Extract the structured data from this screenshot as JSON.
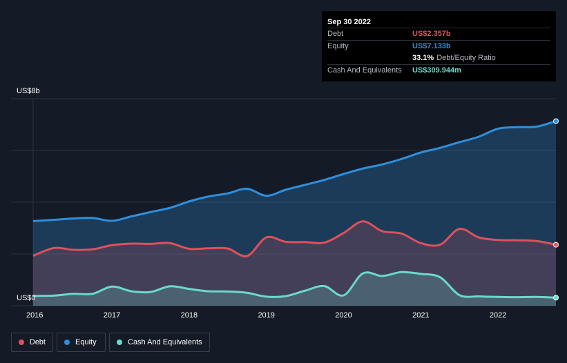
{
  "tooltip": {
    "date": "Sep 30 2022",
    "debt_label": "Debt",
    "debt_value": "US$2.357b",
    "equity_label": "Equity",
    "equity_value": "US$7.133b",
    "ratio_value": "33.1%",
    "ratio_label": "Debt/Equity Ratio",
    "cash_label": "Cash And Equivalents",
    "cash_value": "US$309.944m"
  },
  "legend": {
    "debt": "Debt",
    "equity": "Equity",
    "cash": "Cash And Equivalents"
  },
  "colors": {
    "debt": "#e0505a",
    "equity": "#2e8fde",
    "cash": "#6ad9cc",
    "background": "#151b26"
  },
  "chart_data": {
    "type": "area",
    "y_top_label": "US$8b",
    "y_bottom_label": "US$0",
    "ylim": [
      0,
      8
    ],
    "xlim": [
      2015.98,
      2022.75
    ],
    "x_ticks": [
      "2016",
      "2017",
      "2018",
      "2019",
      "2020",
      "2021",
      "2022"
    ],
    "grid": true,
    "series": [
      {
        "name": "Equity",
        "points": [
          [
            2015.98,
            3.27
          ],
          [
            2016.25,
            3.32
          ],
          [
            2016.5,
            3.37
          ],
          [
            2016.75,
            3.39
          ],
          [
            2017.0,
            3.28
          ],
          [
            2017.25,
            3.45
          ],
          [
            2017.5,
            3.62
          ],
          [
            2017.75,
            3.78
          ],
          [
            2018.0,
            4.03
          ],
          [
            2018.25,
            4.22
          ],
          [
            2018.5,
            4.34
          ],
          [
            2018.75,
            4.52
          ],
          [
            2019.0,
            4.25
          ],
          [
            2019.25,
            4.48
          ],
          [
            2019.5,
            4.67
          ],
          [
            2019.75,
            4.86
          ],
          [
            2020.0,
            5.09
          ],
          [
            2020.25,
            5.3
          ],
          [
            2020.5,
            5.46
          ],
          [
            2020.75,
            5.67
          ],
          [
            2021.0,
            5.92
          ],
          [
            2021.25,
            6.1
          ],
          [
            2021.5,
            6.32
          ],
          [
            2021.75,
            6.53
          ],
          [
            2022.0,
            6.84
          ],
          [
            2022.25,
            6.9
          ],
          [
            2022.5,
            6.92
          ],
          [
            2022.75,
            7.133
          ]
        ]
      },
      {
        "name": "Debt",
        "points": [
          [
            2015.98,
            1.93
          ],
          [
            2016.25,
            2.23
          ],
          [
            2016.5,
            2.16
          ],
          [
            2016.75,
            2.18
          ],
          [
            2017.0,
            2.34
          ],
          [
            2017.25,
            2.4
          ],
          [
            2017.5,
            2.39
          ],
          [
            2017.75,
            2.42
          ],
          [
            2018.0,
            2.2
          ],
          [
            2018.25,
            2.22
          ],
          [
            2018.5,
            2.21
          ],
          [
            2018.75,
            1.92
          ],
          [
            2019.0,
            2.64
          ],
          [
            2019.25,
            2.47
          ],
          [
            2019.5,
            2.46
          ],
          [
            2019.75,
            2.44
          ],
          [
            2020.0,
            2.81
          ],
          [
            2020.25,
            3.26
          ],
          [
            2020.5,
            2.88
          ],
          [
            2020.75,
            2.79
          ],
          [
            2021.0,
            2.42
          ],
          [
            2021.25,
            2.36
          ],
          [
            2021.5,
            2.97
          ],
          [
            2021.75,
            2.64
          ],
          [
            2022.0,
            2.54
          ],
          [
            2022.25,
            2.53
          ],
          [
            2022.5,
            2.5
          ],
          [
            2022.75,
            2.357
          ]
        ]
      },
      {
        "name": "Cash And Equivalents",
        "points": [
          [
            2015.98,
            0.38
          ],
          [
            2016.25,
            0.39
          ],
          [
            2016.5,
            0.46
          ],
          [
            2016.75,
            0.46
          ],
          [
            2017.0,
            0.74
          ],
          [
            2017.25,
            0.56
          ],
          [
            2017.5,
            0.53
          ],
          [
            2017.75,
            0.75
          ],
          [
            2018.0,
            0.65
          ],
          [
            2018.25,
            0.56
          ],
          [
            2018.5,
            0.55
          ],
          [
            2018.75,
            0.5
          ],
          [
            2019.0,
            0.35
          ],
          [
            2019.25,
            0.37
          ],
          [
            2019.5,
            0.58
          ],
          [
            2019.75,
            0.76
          ],
          [
            2020.0,
            0.4
          ],
          [
            2020.25,
            1.25
          ],
          [
            2020.5,
            1.15
          ],
          [
            2020.75,
            1.3
          ],
          [
            2021.0,
            1.23
          ],
          [
            2021.25,
            1.1
          ],
          [
            2021.5,
            0.41
          ],
          [
            2021.75,
            0.36
          ],
          [
            2022.0,
            0.34
          ],
          [
            2022.25,
            0.33
          ],
          [
            2022.5,
            0.34
          ],
          [
            2022.75,
            0.31
          ]
        ]
      }
    ]
  }
}
